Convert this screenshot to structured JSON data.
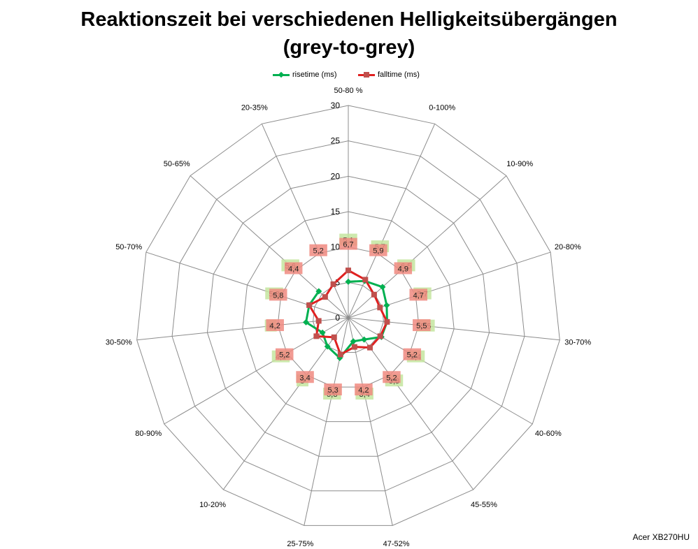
{
  "chart_data": {
    "type": "radar",
    "title": "Reaktionszeit bei verschiedenen Helligkeitsübergängen",
    "subtitle": "(grey-to-grey)",
    "categories": [
      "50-80 %",
      "0-100%",
      "10-90%",
      "20-80%",
      "30-70%",
      "40-60%",
      "45-55%",
      "47-52%",
      "25-75%",
      "10-20%",
      "80-90%",
      "30-50%",
      "50-70%",
      "50-65%",
      "20-35%"
    ],
    "rlim": [
      0,
      30
    ],
    "rticks": [
      "0",
      "5",
      "10",
      "15",
      "20",
      "25",
      "30"
    ],
    "grid": true,
    "legend_position": "top",
    "series": [
      {
        "name": "risetime (ms)",
        "color": "#00b050",
        "marker": "diamond",
        "label_bg": "#c4e59f",
        "values": [
          5.1,
          5.7,
          6.5,
          5.7,
          5.5,
          5.4,
          3.8,
          3.4,
          5.8,
          5,
          4.2,
          6,
          5.8,
          5.6,
          null
        ],
        "labels": [
          "5,1",
          "5,7",
          "6,5",
          "5,7",
          "5,5",
          "5,4",
          "3,8",
          "3,4",
          "5,8",
          "5",
          "4,2",
          "6",
          "5,8",
          "5,6",
          ""
        ]
      },
      {
        "name": "falltime (ms)",
        "color": "#e02020",
        "marker": "square",
        "label_bg": "#f08a80",
        "values": [
          6.7,
          5.9,
          4.9,
          4.7,
          5.5,
          5.2,
          5.2,
          4.2,
          5.3,
          3.4,
          5.2,
          4.2,
          5.8,
          4.4,
          5.2
        ],
        "labels": [
          "6,7",
          "5,9",
          "4,9",
          "4,7",
          "5,5",
          "5,2",
          "5,2",
          "4,2",
          "5,3",
          "3,4",
          "5,2",
          "4,2",
          "5,8",
          "4,4",
          "5,2"
        ]
      }
    ]
  },
  "footnote": "Acer XB270HU"
}
